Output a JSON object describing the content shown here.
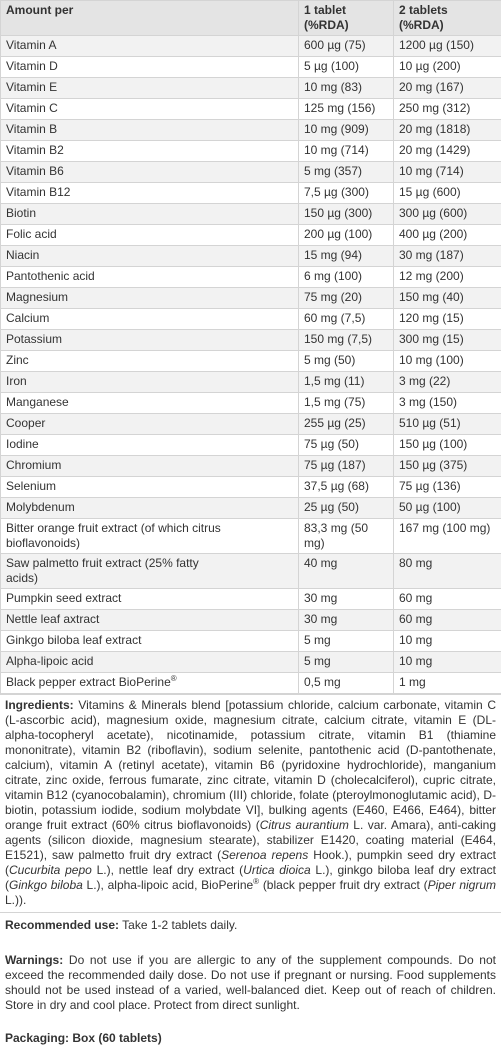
{
  "table": {
    "header": {
      "label": "Amount per",
      "columns": [
        [
          "1 tablet",
          "(%RDA)"
        ],
        [
          "2 tablets",
          "(%RDA)"
        ]
      ]
    },
    "rows": [
      [
        "Vitamin A",
        "600 µg (75)",
        "1200 µg (150)"
      ],
      [
        "Vitamin D",
        "5 µg (100)",
        "10 µg (200)"
      ],
      [
        "Vitamin E",
        "10 mg (83)",
        "20 mg (167)"
      ],
      [
        "Vitamin C",
        "125 mg (156)",
        "250 mg (312)"
      ],
      [
        "Vitamin B",
        "10 mg (909)",
        "20 mg (1818)"
      ],
      [
        "Vitamin B2",
        "10 mg (714)",
        "20 mg (1429)"
      ],
      [
        "Vitamin B6",
        "5 mg (357)",
        "10 mg (714)"
      ],
      [
        "Vitamin B12",
        "7,5 µg (300)",
        "15 µg (600)"
      ],
      [
        "Biotin",
        "150 µg (300)",
        "300 µg (600)"
      ],
      [
        "Folic acid",
        "200 µg (100)",
        "400 µg (200)"
      ],
      [
        "Niacin",
        "15 mg (94)",
        "30 mg (187)"
      ],
      [
        "Pantothenic acid",
        "6 mg (100)",
        "12 mg (200)"
      ],
      [
        "Magnesium",
        "75 mg (20)",
        "150 mg (40)"
      ],
      [
        "Calcium",
        "60 mg (7,5)",
        "120 mg (15)"
      ],
      [
        "Potassium",
        "150 mg (7,5)",
        "300 mg (15)"
      ],
      [
        "Zinc",
        "5 mg (50)",
        "10 mg (100)"
      ],
      [
        "Iron",
        "1,5 mg (11)",
        "3 mg (22)"
      ],
      [
        "Manganese",
        "1,5 mg (75)",
        "3 mg (150)"
      ],
      [
        "Cooper",
        "255 µg (25)",
        "510 µg (51)"
      ],
      [
        "Iodine",
        "75 µg (50)",
        "150 µg (100)"
      ],
      [
        "Chromium",
        "75 µg (187)",
        "150 µg (375)"
      ],
      [
        "Selenium",
        "37,5 µg (68)",
        "75 µg (136)"
      ],
      [
        "Molybdenum",
        "25 µg (50)",
        "50 µg (100)"
      ],
      [
        "Bitter orange fruit extract (of which citrus bioflavonoids)",
        "83,3 mg (50 mg)",
        "167 mg (100 mg)"
      ],
      [
        "Saw palmetto fruit extract (25% fatty acids)",
        "40 mg",
        "80 mg"
      ],
      [
        "Pumpkin seed extract",
        "30 mg",
        "60 mg"
      ],
      [
        "Nettle leaf axtract",
        "30 mg",
        "60 mg"
      ],
      [
        "Ginkgo biloba leaf extract",
        "5 mg",
        "10 mg"
      ],
      [
        "Alpha-lipoic acid",
        "5 mg",
        "10 mg"
      ],
      [
        [
          "Black pepper extract BioPerine",
          "®"
        ],
        "0,5 mg",
        "1 mg"
      ]
    ]
  },
  "ingredients": {
    "label": "Ingredients:",
    "parts": [
      "Vitamins & Minerals blend [potassium chloride, calcium carbonate, vitamin C (L-ascorbic acid), magnesium oxide, magnesium citrate, calcium citrate, vitamin E (DL-alpha-tocopheryl acetate), nicotinamide, potassium citrate, vitamin B1 (thiamine mononitrate), vitamin B2 (riboflavin), sodium selenite, pantothenic acid (D-pantothenate, calcium), vitamin A (retinyl acetate), vitamin B6 (pyridoxine hydrochloride), manganium citrate, zinc oxide, ferrous fumarate, zinc citrate, vitamin D (cholecalciferol), cupric citrate, vitamin B12 (cyanocobalamin), chromium (III) chloride, folate (pteroylmonoglutamic acid), D-biotin, potassium iodide, sodium molybdate VI], bulking agents (E460, E466, E464), bitter orange fruit extract (60% citrus bioflavonoids) (",
      "Citrus aurantium",
      " L. var. Amara), anti-caking agents (silicon dioxide, magnesium stearate), stabilizer E1420, coating material (E464, E1521), saw palmetto fruit dry extract (",
      "Serenoa repens",
      " Hook.), pumpkin seed dry extract (",
      "Cucurbita pepo",
      " L.), nettle leaf dry extract (",
      "Urtica dioica",
      " L.), ginkgo biloba leaf dry extract (",
      "Ginkgo biloba",
      " L.), alpha-lipoic acid, BioPerine",
      "®",
      " (black pepper fruit dry extract (",
      "Piper nigrum",
      " L.))."
    ]
  },
  "recommended_use": {
    "label": "Recommended use:",
    "text": "Take 1-2 tablets daily."
  },
  "warnings": {
    "label": "Warnings:",
    "text": "Do not use if you are allergic to any of the supplement compounds. Do not exceed the recommended daily dose. Do not use if pregnant or nursing. Food supplements should not be used instead of a varied, well-balanced diet. Keep out of reach of children. Store in dry and cool place. Protect from direct sunlight."
  },
  "packaging": {
    "text": "Packaging: Box (60 tablets)"
  }
}
